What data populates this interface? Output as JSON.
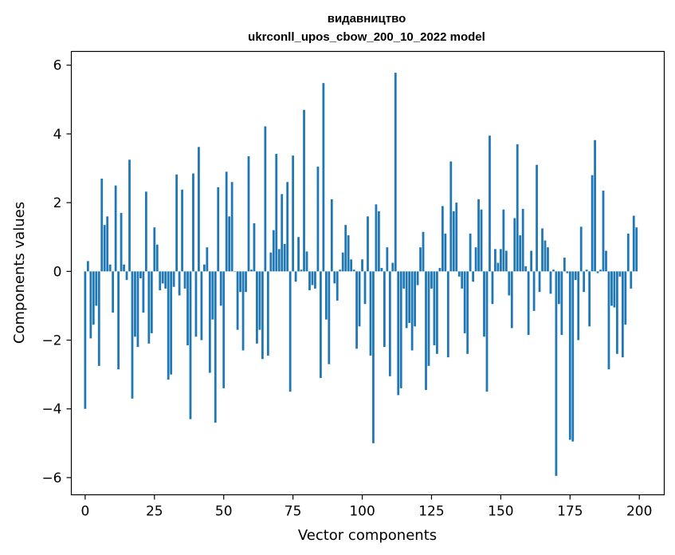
{
  "chart_data": {
    "type": "bar",
    "title_line1": "видавництво",
    "title_line2": "ukrconll_upos_cbow_200_10_2022 model",
    "xlabel": "Vector components",
    "ylabel": "Components values",
    "xlim": [
      -5,
      209
    ],
    "ylim": [
      -6.5,
      6.4
    ],
    "xticks": [
      0,
      25,
      50,
      75,
      100,
      125,
      150,
      175,
      200
    ],
    "yticks": [
      -6,
      -4,
      -2,
      0,
      2,
      4,
      6
    ],
    "ytick_labels": [
      "−6",
      "−4",
      "−2",
      "0",
      "2",
      "4",
      "6"
    ],
    "bar_color": "#1f77b4",
    "values": [
      -4.0,
      0.3,
      -1.95,
      -1.55,
      -1.0,
      -2.75,
      2.7,
      1.35,
      1.6,
      0.2,
      -1.2,
      2.5,
      -2.85,
      1.7,
      0.2,
      -0.25,
      3.25,
      -3.7,
      -1.9,
      -2.2,
      -0.2,
      -1.2,
      2.32,
      -2.1,
      -1.8,
      1.28,
      0.78,
      -0.55,
      -0.35,
      -0.5,
      -3.15,
      -3.0,
      -0.45,
      2.82,
      -0.7,
      2.38,
      -0.5,
      -2.15,
      -4.3,
      2.85,
      -1.9,
      3.62,
      -2.0,
      0.2,
      0.7,
      -2.95,
      -1.4,
      -4.4,
      2.45,
      -1.0,
      -3.4,
      2.9,
      1.6,
      2.6,
      0.0,
      -1.7,
      -0.6,
      -2.3,
      -0.6,
      3.35,
      0.05,
      1.4,
      -2.1,
      -1.7,
      -2.55,
      4.22,
      -2.45,
      0.55,
      1.2,
      3.42,
      0.65,
      2.25,
      0.8,
      2.6,
      -3.5,
      3.37,
      -0.3,
      1.0,
      0.05,
      4.7,
      0.58,
      -0.55,
      -0.4,
      -0.5,
      3.05,
      -3.1,
      5.48,
      -1.4,
      -2.7,
      2.1,
      -0.35,
      -0.85,
      0.05,
      0.55,
      1.35,
      1.05,
      0.35,
      0.05,
      -2.25,
      -1.6,
      0.35,
      -0.95,
      1.6,
      -2.45,
      -5.0,
      1.95,
      1.75,
      0.1,
      -2.2,
      0.7,
      -3.05,
      0.25,
      5.78,
      -3.6,
      -3.4,
      -0.5,
      -1.65,
      -1.5,
      -2.3,
      -1.6,
      -0.4,
      0.7,
      1.15,
      -3.45,
      -2.75,
      -0.5,
      -2.15,
      -2.4,
      0.1,
      1.9,
      1.1,
      -2.5,
      3.2,
      1.75,
      2.0,
      -0.15,
      -0.5,
      -1.8,
      -2.4,
      1.1,
      -0.3,
      0.7,
      2.1,
      1.8,
      -1.9,
      -3.5,
      3.95,
      -0.95,
      0.65,
      0.25,
      0.65,
      1.8,
      0.6,
      -0.7,
      -1.65,
      1.55,
      3.7,
      1.05,
      1.82,
      0.15,
      -1.85,
      0.6,
      -1.15,
      3.1,
      -0.6,
      1.25,
      0.9,
      0.7,
      -0.65,
      0.05,
      -5.95,
      -0.95,
      -1.85,
      0.4,
      -0.05,
      -4.9,
      -4.95,
      -0.25,
      -2.0,
      1.3,
      -0.6,
      0.05,
      -1.6,
      2.8,
      3.82,
      -0.05,
      0.05,
      2.35,
      0.6,
      -2.85,
      -1.0,
      -1.05,
      -2.4,
      -0.15,
      -2.5,
      -1.55,
      1.1,
      -0.5,
      1.62,
      1.28
    ]
  }
}
